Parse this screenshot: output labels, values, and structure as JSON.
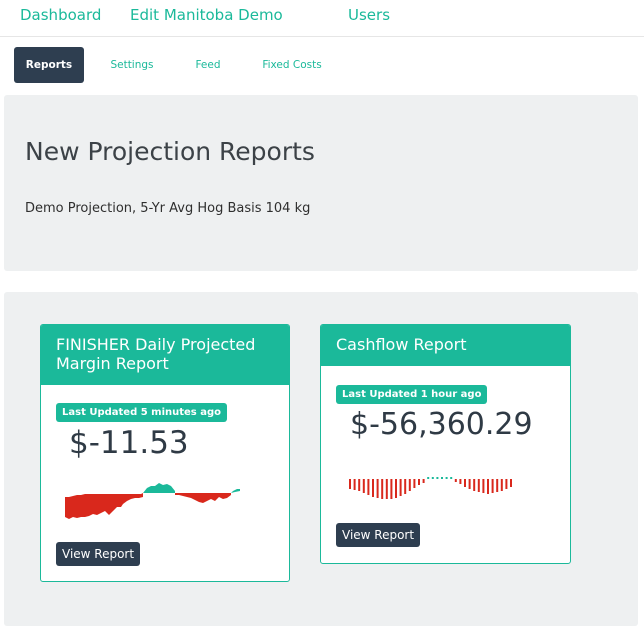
{
  "top_nav": {
    "items": [
      {
        "label": "Dashboard"
      },
      {
        "label": "Edit Manitoba Demo"
      },
      {
        "label": "Users"
      }
    ]
  },
  "sub_nav": {
    "items": [
      {
        "label": "Reports",
        "active": true
      },
      {
        "label": "Settings",
        "active": false
      },
      {
        "label": "Feed",
        "active": false
      },
      {
        "label": "Fixed Costs",
        "active": false
      }
    ]
  },
  "header": {
    "title": "New Projection Reports",
    "subtitle": "Demo Projection, 5-Yr Avg Hog Basis 104 kg"
  },
  "cards": [
    {
      "title": "FINISHER Daily Projected Margin Report",
      "badge": "Last Updated 5 minutes ago",
      "amount": "$-11.53",
      "button": "View Report"
    },
    {
      "title": "Cashflow Report",
      "badge": "Last Updated 1 hour ago",
      "amount": "$-56,360.29",
      "button": "View Report"
    }
  ],
  "colors": {
    "accent": "#1bb99a",
    "dark": "#2e3e50",
    "negative": "#d9281c",
    "panel_bg": "#eef0f1"
  }
}
